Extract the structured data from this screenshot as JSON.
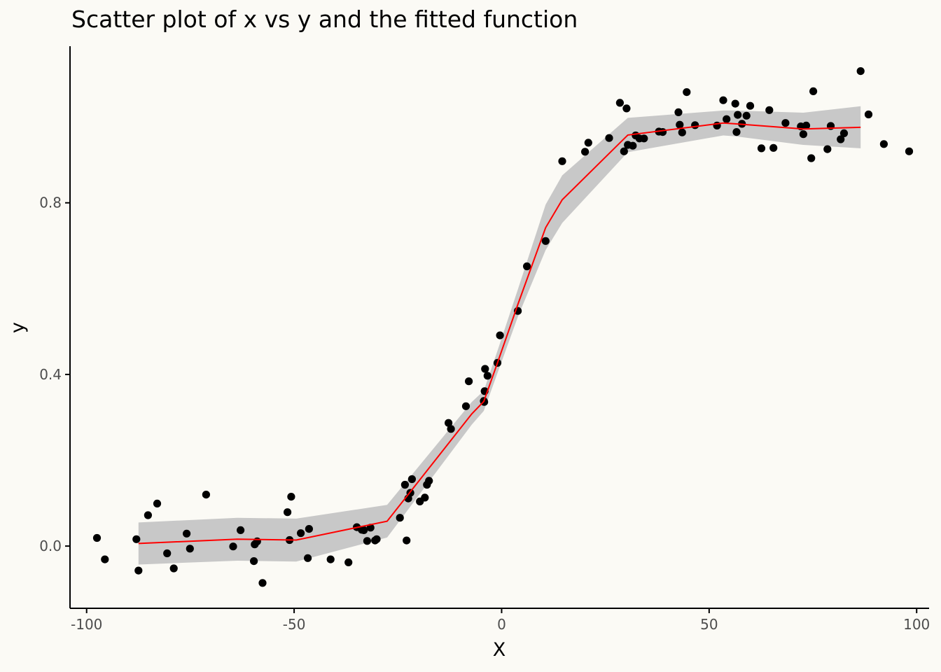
{
  "chart_data": {
    "type": "scatter",
    "title": "Scatter plot of x vs y and the fitted function",
    "xlabel": "X",
    "ylabel": "y",
    "xlim": [
      -104,
      103
    ],
    "ylim": [
      -0.145,
      1.165
    ],
    "xticks": [
      -100,
      -50,
      0,
      50,
      100
    ],
    "xtick_labels": [
      "-100",
      "-50",
      "0",
      "50",
      "100"
    ],
    "yticks": [
      0.0,
      0.4,
      0.8
    ],
    "ytick_labels": [
      "0.0",
      "0.4",
      "0.8"
    ],
    "grid": false,
    "legend": "none",
    "colors": {
      "points": "#000000",
      "fit_line": "#FF0000",
      "confidence_band": "#C8C8C8",
      "background": "#FBFAF5"
    },
    "series": [
      {
        "kind": "points",
        "x": [
          -97.5,
          -95.6,
          -88.0,
          -87.5,
          -85.2,
          -83.0,
          -80.6,
          -79.0,
          -75.9,
          -75.1,
          -71.2,
          -64.7,
          -62.9,
          -59.7,
          -59.5,
          -58.9,
          -57.6,
          -51.6,
          -51.1,
          -50.7,
          -48.4,
          -46.7,
          -46.4,
          -41.2,
          -36.9,
          -34.9,
          -33.7,
          -33.2,
          -32.4,
          -31.6,
          -30.5,
          -30.1,
          -24.5,
          -23.3,
          -22.9,
          -22.5,
          -22.0,
          -21.6,
          -19.7,
          -18.5,
          -18.0,
          -17.5,
          -12.8,
          -12.2,
          -8.6,
          -7.9,
          -4.3,
          -4.2,
          -4.1,
          -4.0,
          -3.4,
          -1.0,
          -0.4,
          3.9,
          6.1,
          10.6,
          14.6,
          20.1,
          20.9,
          25.9,
          28.5,
          29.5,
          30.1,
          30.4,
          31.6,
          32.3,
          33.2,
          34.3,
          37.9,
          38.8,
          42.6,
          42.9,
          43.5,
          44.6,
          46.6,
          51.9,
          53.4,
          54.2,
          56.3,
          56.6,
          56.9,
          57.9,
          59.0,
          59.9,
          62.6,
          64.5,
          65.5,
          68.4,
          72.1,
          72.7,
          73.4,
          74.6,
          75.1,
          78.5,
          79.3,
          81.7,
          82.5,
          86.5,
          88.4,
          92.1,
          98.2
        ],
        "y": [
          0.019,
          -0.031,
          0.016,
          -0.057,
          0.072,
          0.099,
          -0.017,
          -0.052,
          0.029,
          -0.006,
          0.12,
          -0.001,
          0.037,
          -0.035,
          0.004,
          0.011,
          -0.086,
          0.079,
          0.014,
          0.115,
          0.03,
          -0.028,
          0.04,
          -0.031,
          -0.038,
          0.044,
          0.038,
          0.037,
          0.012,
          0.043,
          0.013,
          0.016,
          0.066,
          0.143,
          0.013,
          0.111,
          0.124,
          0.156,
          0.104,
          0.113,
          0.143,
          0.152,
          0.287,
          0.273,
          0.326,
          0.384,
          0.338,
          0.336,
          0.361,
          0.413,
          0.397,
          0.427,
          0.491,
          0.548,
          0.652,
          0.711,
          0.897,
          0.919,
          0.94,
          0.951,
          1.033,
          0.92,
          1.02,
          0.935,
          0.933,
          0.957,
          0.95,
          0.95,
          0.966,
          0.965,
          1.011,
          0.982,
          0.964,
          1.058,
          0.981,
          0.98,
          1.039,
          0.995,
          1.031,
          0.965,
          1.005,
          0.984,
          1.003,
          1.026,
          0.927,
          1.016,
          0.928,
          0.986,
          0.978,
          0.96,
          0.98,
          0.904,
          1.06,
          0.925,
          0.979,
          0.948,
          0.962,
          1.107,
          1.006,
          0.937,
          0.92
        ]
      },
      {
        "kind": "fitted_line",
        "x": [
          -87.5,
          -63.7,
          -49.5,
          -27.6,
          -7.2,
          -4.3,
          -1.0,
          3.9,
          10.6,
          14.6,
          30.4,
          53.4,
          56.3,
          72.7,
          86.5
        ],
        "y": [
          0.006,
          0.016,
          0.014,
          0.058,
          0.308,
          0.337,
          0.427,
          0.563,
          0.742,
          0.807,
          0.958,
          0.986,
          0.984,
          0.972,
          0.976
        ]
      },
      {
        "kind": "confidence_band",
        "x": [
          -87.5,
          -63.7,
          -49.5,
          -27.6,
          -7.2,
          -4.3,
          -1.0,
          3.9,
          10.6,
          14.6,
          30.4,
          53.4,
          56.3,
          72.7,
          86.5
        ],
        "upper": [
          0.055,
          0.066,
          0.064,
          0.096,
          0.336,
          0.362,
          0.455,
          0.598,
          0.796,
          0.864,
          0.998,
          1.015,
          1.015,
          1.01,
          1.025
        ],
        "lower": [
          -0.043,
          -0.034,
          -0.036,
          0.02,
          0.283,
          0.315,
          0.403,
          0.534,
          0.69,
          0.753,
          0.918,
          0.957,
          0.955,
          0.935,
          0.927
        ]
      }
    ]
  }
}
